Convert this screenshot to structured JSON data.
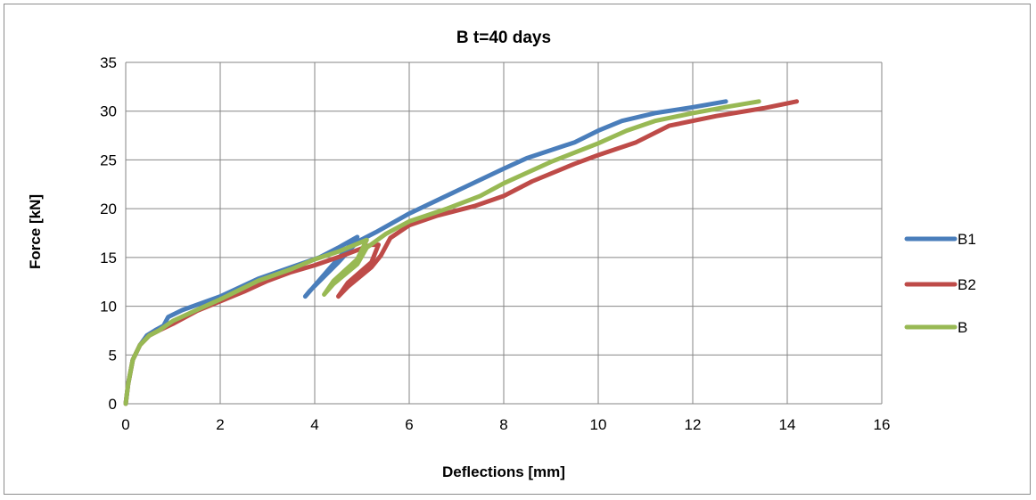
{
  "chart_data": {
    "type": "line",
    "title": "B  t=40 days",
    "xlabel": "Deflections [mm]",
    "ylabel": "Force [kN]",
    "xlim": [
      0,
      16
    ],
    "ylim": [
      0,
      35
    ],
    "xticks": [
      0,
      2,
      4,
      6,
      8,
      10,
      12,
      14,
      16
    ],
    "yticks": [
      0,
      5,
      10,
      15,
      20,
      25,
      30,
      35
    ],
    "grid": true,
    "legend_position": "right",
    "series": [
      {
        "name": "B1",
        "color": "#4a7ebb",
        "points": [
          [
            0,
            0
          ],
          [
            0.05,
            2
          ],
          [
            0.15,
            4.5
          ],
          [
            0.3,
            6
          ],
          [
            0.45,
            7
          ],
          [
            0.65,
            7.6
          ],
          [
            0.8,
            8
          ],
          [
            0.9,
            8.9
          ],
          [
            1.2,
            9.6
          ],
          [
            2,
            11
          ],
          [
            2.8,
            12.8
          ],
          [
            3.5,
            14
          ],
          [
            4.1,
            15
          ],
          [
            4.5,
            16
          ],
          [
            4.9,
            17.1
          ],
          [
            4.3,
            13.8
          ],
          [
            3.8,
            11
          ],
          [
            3.9,
            11.6
          ],
          [
            4.5,
            14.5
          ],
          [
            4.9,
            16.6
          ],
          [
            5.3,
            17.6
          ],
          [
            6,
            19.5
          ],
          [
            7,
            21.8
          ],
          [
            8,
            24.1
          ],
          [
            8.5,
            25.2
          ],
          [
            9.5,
            26.8
          ],
          [
            10,
            28
          ],
          [
            10.5,
            29
          ],
          [
            11.2,
            29.8
          ],
          [
            12,
            30.4
          ],
          [
            12.7,
            31
          ]
        ]
      },
      {
        "name": "B2",
        "color": "#be4b48",
        "points": [
          [
            0,
            0
          ],
          [
            0.05,
            2
          ],
          [
            0.15,
            4.5
          ],
          [
            0.3,
            6
          ],
          [
            0.5,
            7
          ],
          [
            0.7,
            7.5
          ],
          [
            1,
            8.2
          ],
          [
            1.5,
            9.5
          ],
          [
            2,
            10.5
          ],
          [
            2.5,
            11.5
          ],
          [
            3,
            12.6
          ],
          [
            3.5,
            13.5
          ],
          [
            4,
            14.2
          ],
          [
            4.6,
            15.2
          ],
          [
            5.2,
            16.3
          ],
          [
            5.35,
            16.3
          ],
          [
            5.2,
            14.5
          ],
          [
            4.7,
            12.4
          ],
          [
            4.5,
            11
          ],
          [
            4.7,
            12
          ],
          [
            5.2,
            14
          ],
          [
            5.4,
            15.2
          ],
          [
            5.6,
            17
          ],
          [
            6,
            18.3
          ],
          [
            6.6,
            19.3
          ],
          [
            7.4,
            20.3
          ],
          [
            8,
            21.3
          ],
          [
            8.6,
            22.8
          ],
          [
            9.5,
            24.6
          ],
          [
            10,
            25.5
          ],
          [
            10.8,
            26.8
          ],
          [
            11.5,
            28.5
          ],
          [
            12.5,
            29.5
          ],
          [
            13.5,
            30.3
          ],
          [
            14.2,
            31
          ]
        ]
      },
      {
        "name": "B",
        "color": "#98b954",
        "points": [
          [
            0,
            0
          ],
          [
            0.05,
            2
          ],
          [
            0.15,
            4.5
          ],
          [
            0.3,
            6
          ],
          [
            0.5,
            7
          ],
          [
            0.7,
            7.5
          ],
          [
            1,
            8.5
          ],
          [
            1.5,
            9.6
          ],
          [
            2,
            10.7
          ],
          [
            2.8,
            12.6
          ],
          [
            3.5,
            13.8
          ],
          [
            4,
            14.8
          ],
          [
            4.5,
            15.6
          ],
          [
            5.1,
            16.8
          ],
          [
            4.9,
            14.8
          ],
          [
            4.4,
            12.6
          ],
          [
            4.2,
            11.2
          ],
          [
            4.4,
            12.3
          ],
          [
            4.9,
            14.3
          ],
          [
            5.1,
            16
          ],
          [
            5.5,
            17.4
          ],
          [
            6,
            18.7
          ],
          [
            6.8,
            20
          ],
          [
            7.5,
            21.3
          ],
          [
            8,
            22.6
          ],
          [
            9,
            24.8
          ],
          [
            10,
            26.7
          ],
          [
            10.6,
            28
          ],
          [
            11.2,
            29
          ],
          [
            12,
            29.8
          ],
          [
            12.8,
            30.5
          ],
          [
            13.4,
            31
          ]
        ]
      }
    ]
  }
}
